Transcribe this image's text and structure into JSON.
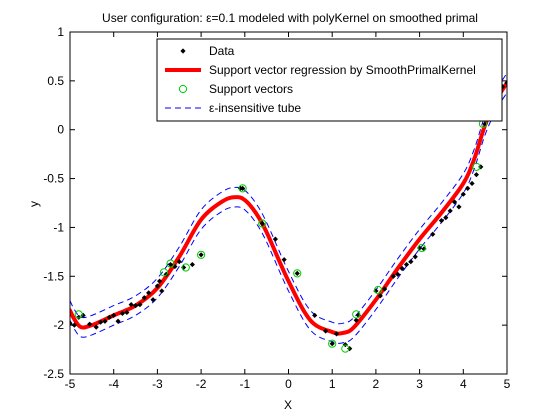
{
  "chart_data": {
    "type": "line",
    "title": "User configuration: ε=0.1 modeled with polyKernel on smoothed primal",
    "xlabel": "X",
    "ylabel": "y",
    "xlim": [
      -5,
      5
    ],
    "ylim": [
      -2.5,
      1
    ],
    "xticks": [
      -5,
      -4,
      -3,
      -2,
      -1,
      0,
      1,
      2,
      3,
      4,
      5
    ],
    "yticks": [
      -2.5,
      -2,
      -1.5,
      -1,
      -0.5,
      0,
      0.5,
      1
    ],
    "grid": false,
    "legend_position": "top-right",
    "epsilon": 0.1,
    "series": [
      {
        "name": "Data",
        "style": "markers",
        "color": "#000000",
        "x": [
          -5.0,
          -4.9,
          -4.8,
          -4.7,
          -4.55,
          -4.4,
          -4.3,
          -4.2,
          -4.1,
          -4.0,
          -3.9,
          -3.8,
          -3.7,
          -3.6,
          -3.5,
          -3.4,
          -3.3,
          -3.2,
          -3.1,
          -3.0,
          -2.95,
          -2.9,
          -2.8,
          -2.7,
          -2.6,
          -2.5,
          -2.4,
          -2.2,
          -2.0,
          -1.1,
          -1.05,
          -0.6,
          -0.3,
          -0.1,
          0.2,
          0.6,
          0.85,
          1.0,
          1.1,
          1.3,
          1.4,
          1.55,
          1.6,
          2.0,
          2.1,
          2.2,
          2.4,
          2.5,
          2.6,
          2.7,
          2.8,
          2.9,
          3.0,
          3.1,
          3.3,
          3.5,
          3.6,
          3.7,
          3.8,
          3.9,
          4.0,
          4.1,
          4.2,
          4.3,
          4.4,
          4.5,
          4.6,
          4.7,
          4.8,
          4.9,
          5.0
        ],
        "y": [
          -1.98,
          -2.0,
          -1.92,
          -1.9,
          -1.99,
          -2.02,
          -1.97,
          -1.96,
          -1.92,
          -1.9,
          -1.96,
          -1.88,
          -1.87,
          -1.79,
          -1.8,
          -1.79,
          -1.72,
          -1.67,
          -1.74,
          -1.6,
          -1.55,
          -1.65,
          -1.48,
          -1.38,
          -1.4,
          -1.35,
          -1.41,
          -1.38,
          -1.28,
          -0.6,
          -0.6,
          -0.96,
          -1.12,
          -1.33,
          -1.47,
          -1.9,
          -2.06,
          -2.19,
          -2.09,
          -2.2,
          -2.24,
          -1.95,
          -1.9,
          -1.65,
          -1.7,
          -1.63,
          -1.5,
          -1.48,
          -1.42,
          -1.38,
          -1.35,
          -1.3,
          -1.21,
          -1.22,
          -1.07,
          -0.93,
          -0.9,
          -0.83,
          -0.74,
          -0.79,
          -0.66,
          -0.6,
          -0.55,
          -0.46,
          -0.38,
          0.06,
          0.12,
          0.24,
          0.33,
          0.44,
          0.48
        ]
      },
      {
        "name": "Support vector regression by SmoothPrimalKernel",
        "style": "line",
        "color": "#ff0000",
        "x": [
          -5.0,
          -4.9,
          -4.75,
          -4.5,
          -4.0,
          -3.5,
          -3.0,
          -2.5,
          -2.0,
          -1.5,
          -1.2,
          -1.0,
          -0.75,
          -0.5,
          0.0,
          0.5,
          1.0,
          1.25,
          1.5,
          2.0,
          2.5,
          3.0,
          3.5,
          4.0,
          4.25,
          4.5,
          4.75,
          5.0
        ],
        "y": [
          -1.85,
          -1.94,
          -2.02,
          -2.0,
          -1.9,
          -1.8,
          -1.62,
          -1.3,
          -0.92,
          -0.73,
          -0.69,
          -0.72,
          -0.85,
          -1.05,
          -1.55,
          -1.95,
          -2.07,
          -2.08,
          -2.02,
          -1.74,
          -1.42,
          -1.12,
          -0.85,
          -0.55,
          -0.3,
          0.05,
          0.3,
          0.48
        ]
      },
      {
        "name": "Support vectors",
        "style": "circles",
        "color": "#00cc00",
        "x": [
          -4.8,
          -2.85,
          -2.7,
          -2.35,
          -2.0,
          -1.05,
          -0.6,
          0.2,
          1.0,
          1.3,
          1.55,
          2.05,
          3.05,
          4.3,
          4.45
        ],
        "y": [
          -1.89,
          -1.46,
          -1.37,
          -1.41,
          -1.28,
          -0.6,
          -0.96,
          -1.47,
          -2.19,
          -2.24,
          -1.89,
          -1.64,
          -1.21,
          -0.38,
          0.06
        ]
      },
      {
        "name": "ε-insensitive tube",
        "style": "dashed",
        "color": "#0000ff",
        "x": [
          -5.0,
          -4.9,
          -4.75,
          -4.5,
          -4.0,
          -3.5,
          -3.0,
          -2.5,
          -2.0,
          -1.5,
          -1.2,
          -1.0,
          -0.75,
          -0.5,
          0.0,
          0.5,
          1.0,
          1.25,
          1.5,
          2.0,
          2.5,
          3.0,
          3.5,
          4.0,
          4.25,
          4.5,
          4.75,
          5.0
        ],
        "upper": [
          -1.75,
          -1.84,
          -1.92,
          -1.9,
          -1.8,
          -1.7,
          -1.52,
          -1.2,
          -0.82,
          -0.63,
          -0.59,
          -0.62,
          -0.75,
          -0.95,
          -1.45,
          -1.85,
          -1.97,
          -1.98,
          -1.92,
          -1.64,
          -1.32,
          -1.02,
          -0.75,
          -0.45,
          -0.2,
          0.15,
          0.4,
          0.58
        ],
        "lower": [
          -1.95,
          -2.04,
          -2.12,
          -2.1,
          -2.0,
          -1.9,
          -1.72,
          -1.4,
          -1.02,
          -0.83,
          -0.79,
          -0.82,
          -0.95,
          -1.15,
          -1.65,
          -2.05,
          -2.17,
          -2.18,
          -2.12,
          -1.84,
          -1.52,
          -1.22,
          -0.95,
          -0.65,
          -0.4,
          -0.05,
          0.2,
          0.38
        ]
      }
    ]
  }
}
